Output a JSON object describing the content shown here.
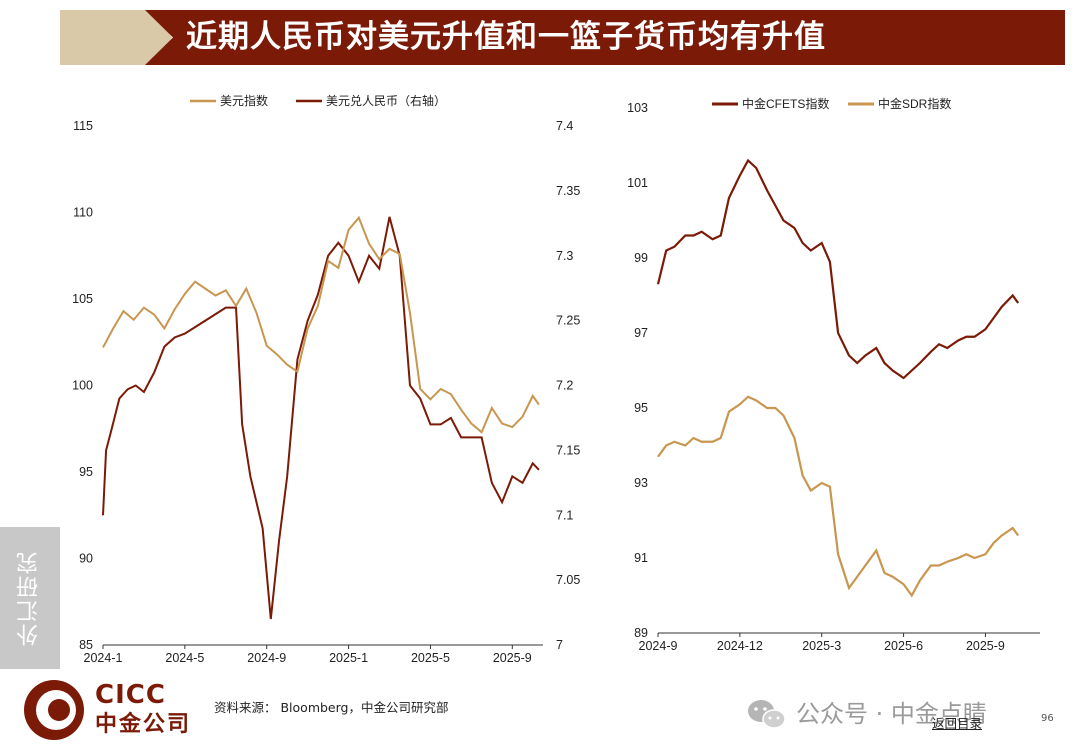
{
  "title": "近期人民币对美元升值和一篮子货币均有升值",
  "side_label": "外汇研究",
  "footer": {
    "source": "资料来源： Bloomberg，中金公司研究部",
    "logo_en": "CICC",
    "logo_cn": "中金公司",
    "watermark": "公众号 · 中金点睛",
    "back_link": "返回目录",
    "page_number": "96"
  },
  "colors": {
    "dark_red": "#7a1a07",
    "gold": "#c8964f"
  },
  "chart_data": [
    {
      "type": "line",
      "legend": [
        "美元指数",
        "美元兑人民币（右轴）"
      ],
      "ylim": [
        85,
        115
      ],
      "y_ticks": [
        "115",
        "110",
        "105",
        "100",
        "95",
        "90",
        "85"
      ],
      "y2lim": [
        7.0,
        7.4
      ],
      "y2_ticks": [
        "7.4",
        "7.35",
        "7.3",
        "7.25",
        "7.2",
        "7.15",
        "7.1",
        "7.05",
        "7"
      ],
      "x_ticks": [
        "2024-1",
        "2024-5",
        "2024-9",
        "2025-1",
        "2025-5",
        "2025-9"
      ],
      "series": [
        {
          "name": "美元指数",
          "axis": "left",
          "color": "#c8964f",
          "t": [
            0,
            0.5,
            1,
            1.5,
            2,
            2.5,
            3,
            3.5,
            4,
            4.5,
            5,
            5.5,
            6,
            6.5,
            7,
            7.5,
            8,
            8.5,
            9,
            9.5,
            10,
            10.5,
            11,
            11.5,
            12,
            12.5,
            13,
            13.5,
            14,
            14.5,
            15,
            15.5,
            16,
            16.5,
            17,
            17.5,
            18,
            18.5,
            19,
            19.5,
            20,
            20.5,
            21,
            21.3
          ],
          "values": [
            102.2,
            103.3,
            104.3,
            103.8,
            104.5,
            104.1,
            103.3,
            104.4,
            105.3,
            106.0,
            105.6,
            105.2,
            105.5,
            104.6,
            105.6,
            104.2,
            102.3,
            101.8,
            101.2,
            100.8,
            103.3,
            104.6,
            107.2,
            106.8,
            109.0,
            109.7,
            108.2,
            107.3,
            107.9,
            107.6,
            104.2,
            99.8,
            99.2,
            99.8,
            99.5,
            98.6,
            97.8,
            97.3,
            98.7,
            97.8,
            97.6,
            98.2,
            99.4,
            98.9
          ]
        },
        {
          "name": "美元兑人民币（右轴）",
          "axis": "right",
          "color": "#7a1a07",
          "t": [
            0,
            0.15,
            0.4,
            0.8,
            1.2,
            1.6,
            2,
            2.5,
            3,
            3.5,
            4,
            4.5,
            5,
            5.5,
            6,
            6.5,
            6.8,
            7.2,
            7.5,
            7.8,
            8.2,
            8.6,
            9,
            9.5,
            10,
            10.5,
            11,
            11.5,
            12,
            12.5,
            13,
            13.5,
            14,
            14.5,
            15,
            15.5,
            16,
            16.5,
            17,
            17.5,
            18,
            18.5,
            19,
            19.5,
            20,
            20.5,
            21,
            21.3
          ],
          "values": [
            7.1,
            7.15,
            7.165,
            7.19,
            7.197,
            7.2,
            7.195,
            7.21,
            7.23,
            7.237,
            7.24,
            7.245,
            7.25,
            7.255,
            7.26,
            7.26,
            7.17,
            7.13,
            7.11,
            7.09,
            7.02,
            7.08,
            7.13,
            7.22,
            7.25,
            7.27,
            7.3,
            7.31,
            7.3,
            7.28,
            7.3,
            7.29,
            7.33,
            7.3,
            7.2,
            7.19,
            7.17,
            7.17,
            7.175,
            7.16,
            7.16,
            7.16,
            7.125,
            7.11,
            7.13,
            7.125,
            7.14,
            7.135
          ]
        }
      ]
    },
    {
      "type": "line",
      "legend": [
        "中金CFETS指数",
        "中金SDR指数"
      ],
      "ylim": [
        89,
        103
      ],
      "y_ticks": [
        "103",
        "101",
        "99",
        "97",
        "95",
        "93",
        "91",
        "89"
      ],
      "x_ticks": [
        "2024-9",
        "2024-12",
        "2025-3",
        "2025-6",
        "2025-9"
      ],
      "series": [
        {
          "name": "中金CFETS指数",
          "color": "#7a1a07",
          "t": [
            0,
            0.3,
            0.6,
            1,
            1.3,
            1.6,
            2,
            2.3,
            2.6,
            3,
            3.3,
            3.6,
            4,
            4.3,
            4.6,
            5,
            5.3,
            5.6,
            6,
            6.3,
            6.6,
            7,
            7.3,
            7.6,
            8,
            8.3,
            8.6,
            9,
            9.3,
            9.6,
            10,
            10.3,
            10.6,
            11,
            11.3,
            11.6,
            12,
            12.3,
            12.6,
            13,
            13.2
          ],
          "values": [
            98.3,
            99.2,
            99.3,
            99.6,
            99.6,
            99.7,
            99.5,
            99.6,
            100.6,
            101.2,
            101.6,
            101.4,
            100.8,
            100.4,
            100.0,
            99.8,
            99.4,
            99.2,
            99.4,
            98.9,
            97.0,
            96.4,
            96.2,
            96.4,
            96.6,
            96.2,
            96.0,
            95.8,
            96.0,
            96.2,
            96.5,
            96.7,
            96.6,
            96.8,
            96.9,
            96.9,
            97.1,
            97.4,
            97.7,
            98.0,
            97.8
          ]
        },
        {
          "name": "中金SDR指数",
          "color": "#c8964f",
          "t": [
            0,
            0.3,
            0.6,
            1,
            1.3,
            1.6,
            2,
            2.3,
            2.6,
            3,
            3.3,
            3.6,
            4,
            4.3,
            4.6,
            5,
            5.3,
            5.6,
            6,
            6.3,
            6.6,
            7,
            7.3,
            7.6,
            8,
            8.3,
            8.6,
            9,
            9.3,
            9.6,
            10,
            10.3,
            10.6,
            11,
            11.3,
            11.6,
            12,
            12.3,
            12.6,
            13,
            13.2
          ],
          "values": [
            93.7,
            94.0,
            94.1,
            94.0,
            94.2,
            94.1,
            94.1,
            94.2,
            94.9,
            95.1,
            95.3,
            95.2,
            95.0,
            95.0,
            94.8,
            94.2,
            93.2,
            92.8,
            93.0,
            92.9,
            91.1,
            90.2,
            90.5,
            90.8,
            91.2,
            90.6,
            90.5,
            90.3,
            90.0,
            90.4,
            90.8,
            90.8,
            90.9,
            91.0,
            91.1,
            91.0,
            91.1,
            91.4,
            91.6,
            91.8,
            91.6
          ]
        }
      ]
    }
  ]
}
